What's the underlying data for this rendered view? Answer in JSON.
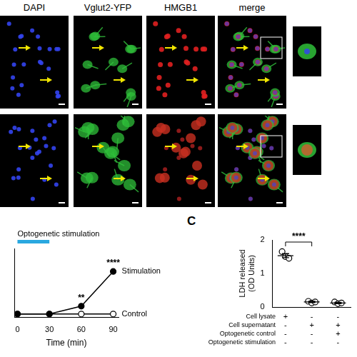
{
  "image_panels": {
    "channels": [
      "DAPI",
      "Vglut2-YFP",
      "HMGB1",
      "merge"
    ]
  },
  "chart_data": [
    {
      "type": "line",
      "x": [
        0,
        30,
        60,
        90
      ],
      "xlabel": "Time (min)",
      "xlim": [
        -3,
        95
      ],
      "xticks": [
        0,
        30,
        60,
        90
      ],
      "ylim": [
        -0.05,
        1
      ],
      "tick_labels": "x",
      "grid": false,
      "series": [
        {
          "name": "Stimulation",
          "color": "#000000",
          "marker": "filled",
          "values": [
            0,
            0,
            0.12,
            0.65
          ]
        },
        {
          "name": "Control",
          "color": "#000000",
          "marker": "open",
          "values": [
            0,
            0,
            0,
            0
          ]
        }
      ],
      "annotations": [
        {
          "x": 60,
          "series": "Stimulation",
          "text": "**"
        },
        {
          "x": 90,
          "series": "Stimulation",
          "text": "****"
        }
      ],
      "stimulation_bar": {
        "label": "Optogenetic stimulation",
        "x": [
          0,
          30
        ],
        "color": "#29a8e0"
      }
    },
    {
      "type": "scatter",
      "panel": "C",
      "ylabel": "LDH released (OD Units)",
      "ylim": [
        0,
        2
      ],
      "yticks": [
        0,
        1,
        2
      ],
      "grid": false,
      "color": "#000000",
      "marker": "open",
      "groups": [
        {
          "values": [
            1.65,
            1.5,
            1.45
          ],
          "mean": 1.53,
          "error": 0.06
        },
        {
          "values": [
            0.17,
            0.12,
            0.15
          ],
          "mean": 0.15,
          "error": 0.02
        },
        {
          "values": [
            0.15,
            0.1,
            0.12
          ],
          "mean": 0.12,
          "error": 0.02
        }
      ],
      "conditions": {
        "rows": [
          "Cell lysate",
          "Cell supernatant",
          "Optogenetic control",
          "Optogenetic stimulation"
        ],
        "marks": [
          [
            "+",
            "-",
            "-"
          ],
          [
            "-",
            "+",
            "+"
          ],
          [
            "-",
            "-",
            "+"
          ],
          [
            "-",
            "-",
            "-"
          ]
        ]
      },
      "significance": [
        {
          "from": 0,
          "to": 1,
          "label": "****"
        }
      ]
    }
  ]
}
